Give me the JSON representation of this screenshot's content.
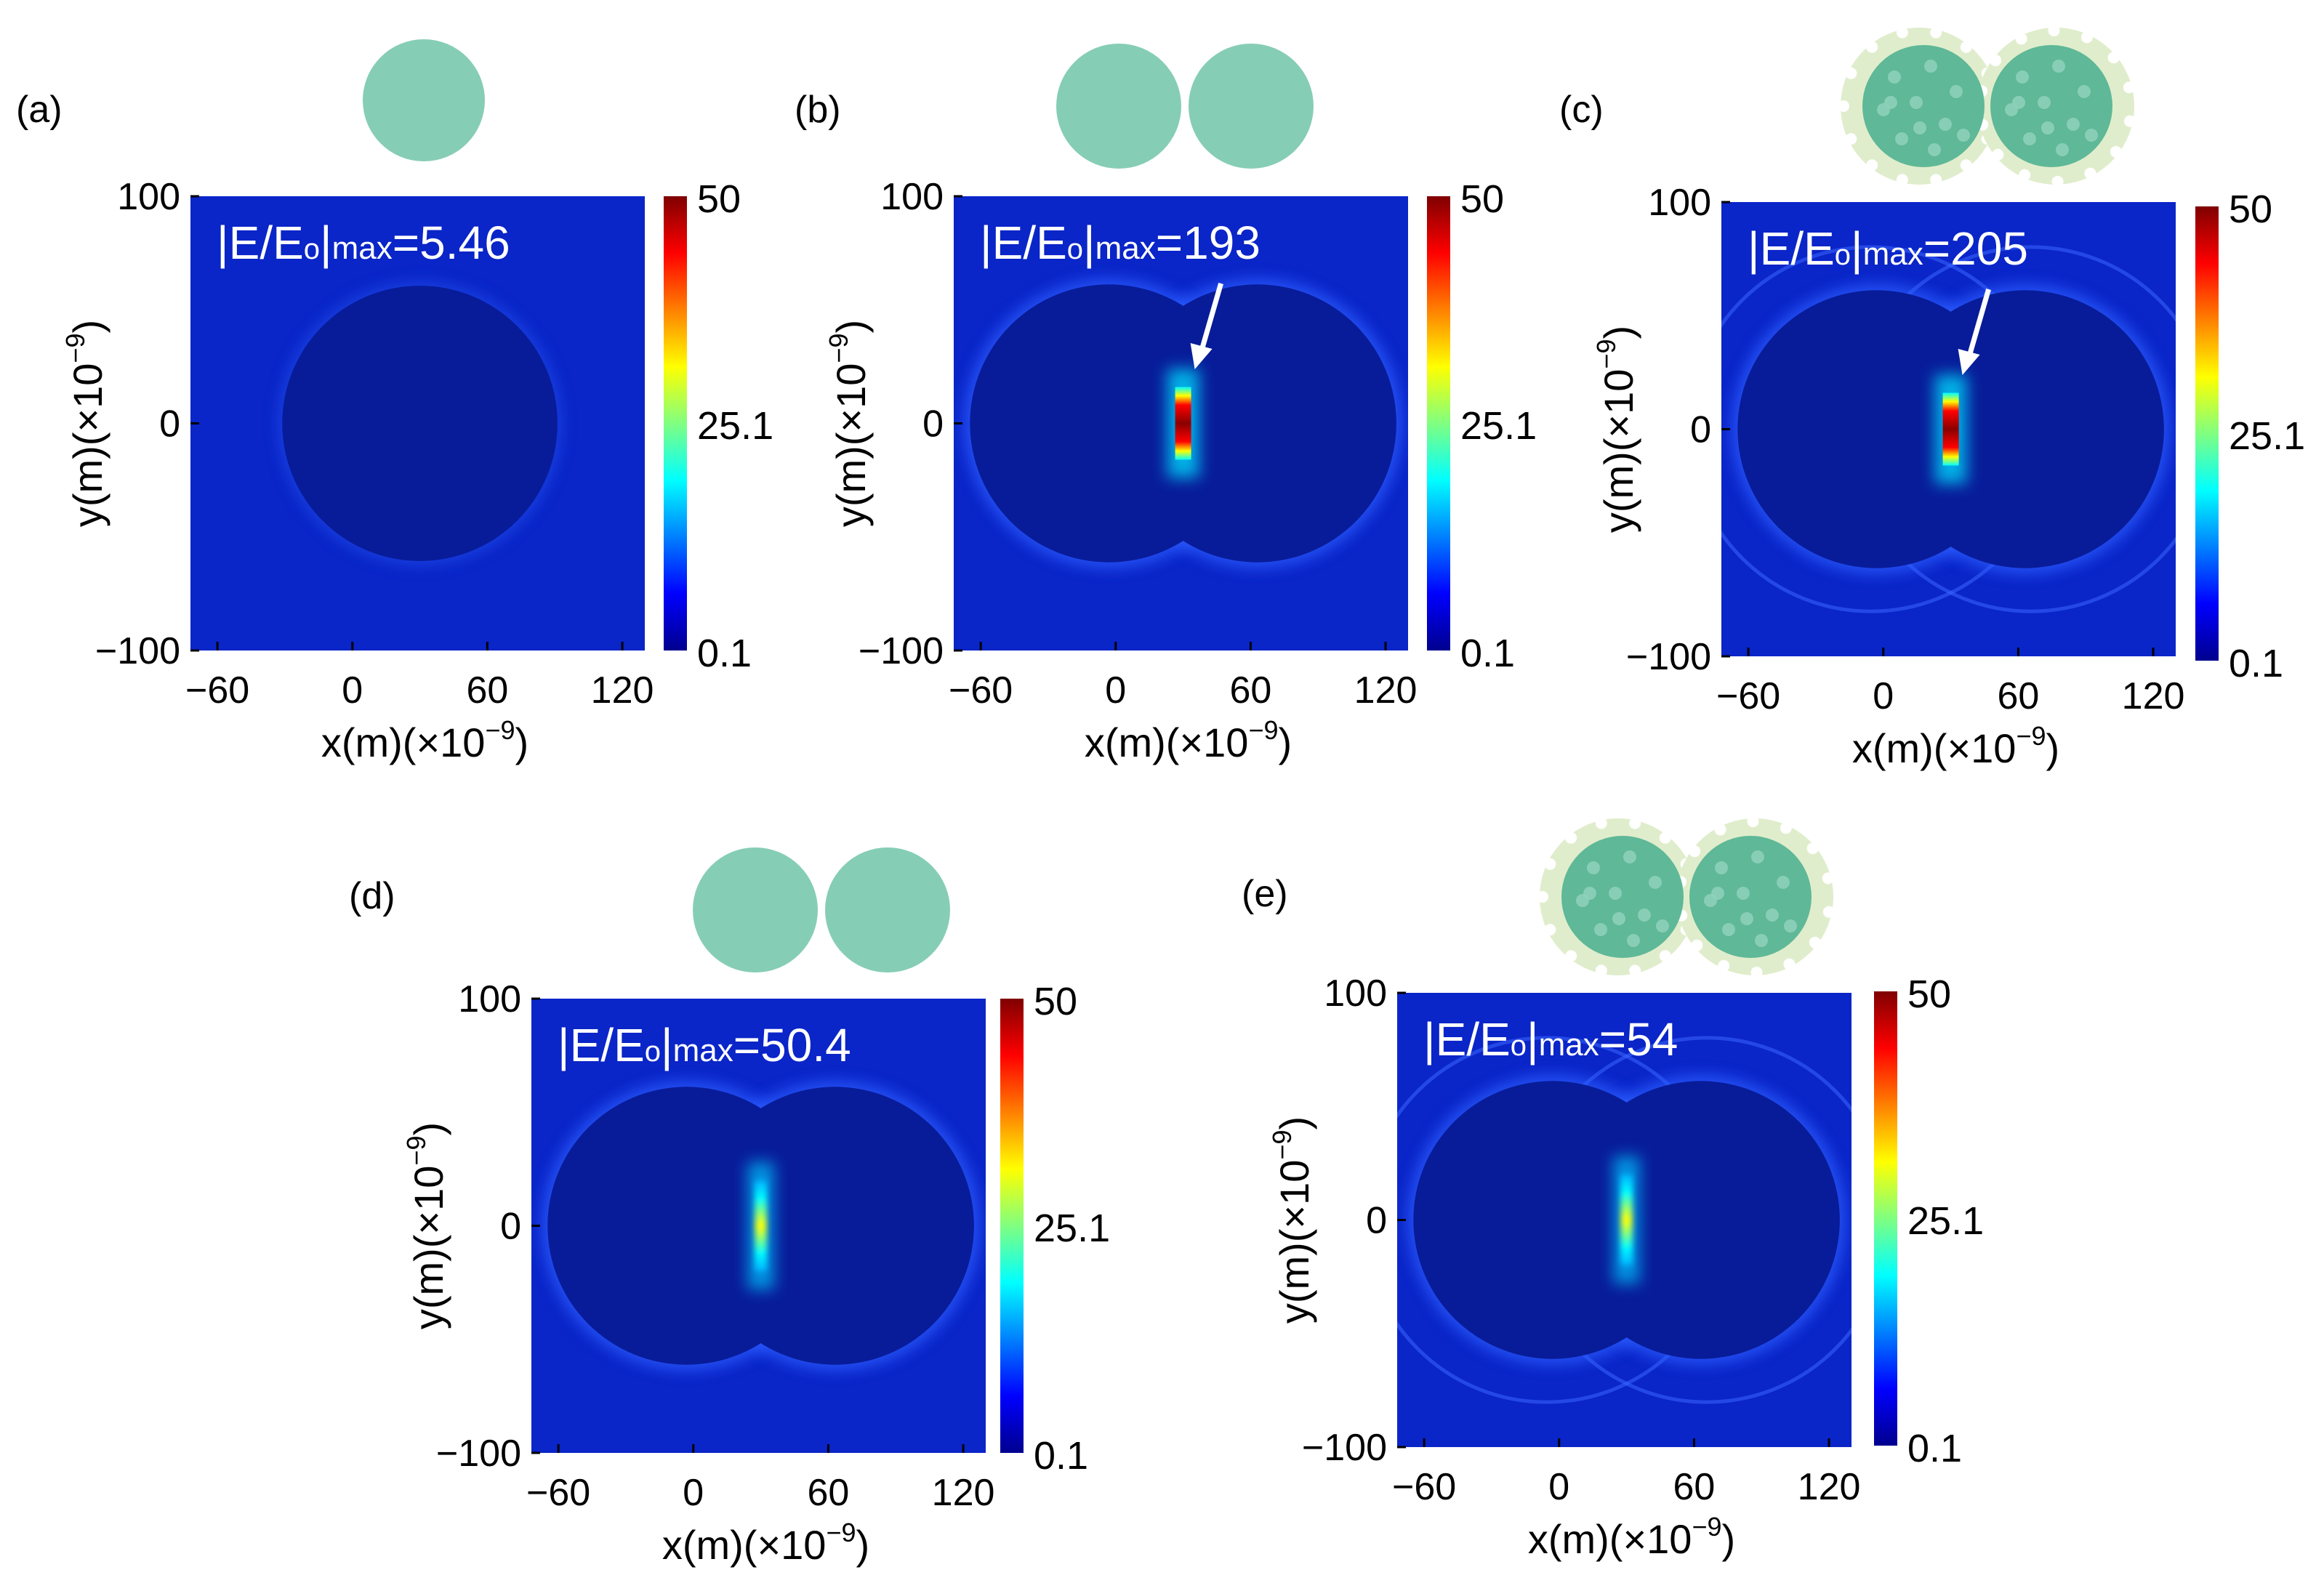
{
  "colors": {
    "bg_blue": "#0a25c8",
    "inner_blue": "#081c99",
    "sphere_green": "#86cdb6",
    "shell_green": "#e0edcc",
    "cmap": [
      "#00008f",
      "#0000ff",
      "#0080ff",
      "#00ffff",
      "#80ff80",
      "#ffff00",
      "#ff8000",
      "#ff0000",
      "#800000"
    ]
  },
  "chart_data": [
    {
      "type": "heatmap",
      "panel_label": "(a)",
      "annotation_prefix": "|E/E",
      "annotation_sub": "o",
      "annotation_bar": "|",
      "annotation_max": "max",
      "annotation_value": "=5.46",
      "max_field": 5.46,
      "particles": "single",
      "shell": false,
      "arrow": false,
      "xlabel": "x(m)(×10",
      "xlabel_exp": "−9",
      "xlabel_close": ")",
      "ylabel": "y(m)(×10",
      "ylabel_exp": "−9",
      "ylabel_close": ")",
      "xticks": [
        "−60",
        "0",
        "60",
        "120"
      ],
      "xtick_values": [
        -60,
        0,
        60,
        120
      ],
      "yticks": [
        "100",
        "0",
        "−100"
      ],
      "ytick_values": [
        100,
        0,
        -100
      ],
      "xlim": [
        -72,
        130
      ],
      "ylim": [
        -100,
        100
      ],
      "colorbar": {
        "ticks": [
          "50",
          "25.1",
          "0.1"
        ],
        "values": [
          50,
          25.1,
          0.1
        ],
        "range": [
          0.1,
          50
        ]
      }
    },
    {
      "type": "heatmap",
      "panel_label": "(b)",
      "annotation_prefix": "|E/E",
      "annotation_sub": "o",
      "annotation_bar": "|",
      "annotation_max": "max",
      "annotation_value": "=193",
      "max_field": 193,
      "particles": "dimer",
      "shell": false,
      "arrow": true,
      "hotspot": "strong",
      "xlabel": "x(m)(×10",
      "xlabel_exp": "−9",
      "xlabel_close": ")",
      "ylabel": "y(m)(×10",
      "ylabel_exp": "−9",
      "ylabel_close": ")",
      "xticks": [
        "−60",
        "0",
        "60",
        "120"
      ],
      "xtick_values": [
        -60,
        0,
        60,
        120
      ],
      "yticks": [
        "100",
        "0",
        "−100"
      ],
      "ytick_values": [
        100,
        0,
        -100
      ],
      "xlim": [
        -72,
        130
      ],
      "ylim": [
        -100,
        100
      ],
      "colorbar": {
        "ticks": [
          "50",
          "25.1",
          "0.1"
        ],
        "values": [
          50,
          25.1,
          0.1
        ],
        "range": [
          0.1,
          50
        ]
      }
    },
    {
      "type": "heatmap",
      "panel_label": "(c)",
      "annotation_prefix": "|E/E",
      "annotation_sub": "o",
      "annotation_bar": "|",
      "annotation_max": "max",
      "annotation_value": "=205",
      "max_field": 205,
      "particles": "dimer",
      "shell": true,
      "arrow": true,
      "hotspot": "strong",
      "xlabel": "x(m)(×10",
      "xlabel_exp": "−9",
      "xlabel_close": ")",
      "ylabel": "y(m)(×10",
      "ylabel_exp": "−9",
      "ylabel_close": ")",
      "xticks": [
        "−60",
        "0",
        "60",
        "120"
      ],
      "xtick_values": [
        -60,
        0,
        60,
        120
      ],
      "yticks": [
        "100",
        "0",
        "−100"
      ],
      "ytick_values": [
        100,
        0,
        -100
      ],
      "xlim": [
        -72,
        130
      ],
      "ylim": [
        -100,
        100
      ],
      "colorbar": {
        "ticks": [
          "50",
          "25.1",
          "0.1"
        ],
        "values": [
          50,
          25.1,
          0.1
        ],
        "range": [
          0.1,
          50
        ]
      }
    },
    {
      "type": "heatmap",
      "panel_label": "(d)",
      "annotation_prefix": "|E/E",
      "annotation_sub": "o",
      "annotation_bar": "|",
      "annotation_max": "max",
      "annotation_value": "=50.4",
      "max_field": 50.4,
      "particles": "dimer",
      "shell": false,
      "arrow": false,
      "hotspot": "moderate",
      "xlabel": "x(m)(×10",
      "xlabel_exp": "−9",
      "xlabel_close": ")",
      "ylabel": "y(m)(×10",
      "ylabel_exp": "−9",
      "ylabel_close": ")",
      "xticks": [
        "−60",
        "0",
        "60",
        "120"
      ],
      "xtick_values": [
        -60,
        0,
        60,
        120
      ],
      "yticks": [
        "100",
        "0",
        "−100"
      ],
      "ytick_values": [
        100,
        0,
        -100
      ],
      "xlim": [
        -72,
        130
      ],
      "ylim": [
        -100,
        100
      ],
      "colorbar": {
        "ticks": [
          "50",
          "25.1",
          "0.1"
        ],
        "values": [
          50,
          25.1,
          0.1
        ],
        "range": [
          0.1,
          50
        ]
      }
    },
    {
      "type": "heatmap",
      "panel_label": "(e)",
      "annotation_prefix": "|E/E",
      "annotation_sub": "o",
      "annotation_bar": "|",
      "annotation_max": "max",
      "annotation_value": "=54",
      "max_field": 54,
      "particles": "dimer",
      "shell": true,
      "arrow": false,
      "hotspot": "moderate",
      "xlabel": "x(m)(×10",
      "xlabel_exp": "−9",
      "xlabel_close": ")",
      "ylabel": "y(m)(×10",
      "ylabel_exp": "−9",
      "ylabel_close": ")",
      "xticks": [
        "−60",
        "0",
        "60",
        "120"
      ],
      "xtick_values": [
        -60,
        0,
        60,
        120
      ],
      "yticks": [
        "100",
        "0",
        "−100"
      ],
      "ytick_values": [
        100,
        0,
        -100
      ],
      "xlim": [
        -72,
        130
      ],
      "ylim": [
        -100,
        100
      ],
      "colorbar": {
        "ticks": [
          "50",
          "25.1",
          "0.1"
        ],
        "values": [
          50,
          25.1,
          0.1
        ],
        "range": [
          0.1,
          50
        ]
      }
    }
  ]
}
